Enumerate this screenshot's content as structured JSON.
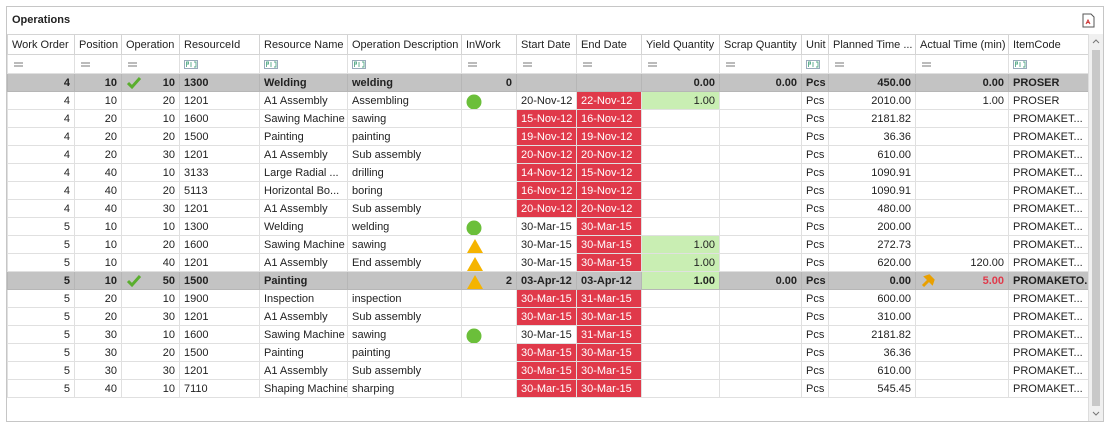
{
  "title": "Operations",
  "columns": [
    {
      "label": "Work Order",
      "align": "right",
      "filter": "number"
    },
    {
      "label": "Position",
      "align": "right",
      "filter": "number"
    },
    {
      "label": "Operation",
      "align": "right",
      "filter": "number"
    },
    {
      "label": "ResourceId",
      "align": "left",
      "filter": "text"
    },
    {
      "label": "Resource Name",
      "align": "left",
      "filter": "text"
    },
    {
      "label": "Operation Description",
      "align": "left",
      "filter": "text"
    },
    {
      "label": "InWork",
      "align": "right",
      "filter": "number"
    },
    {
      "label": "Start Date",
      "align": "left",
      "filter": "number"
    },
    {
      "label": "End Date",
      "align": "left",
      "filter": "number"
    },
    {
      "label": "Yield Quantity",
      "align": "right",
      "filter": "number"
    },
    {
      "label": "Scrap Quantity",
      "align": "right",
      "filter": "number"
    },
    {
      "label": "Unit",
      "align": "left",
      "filter": "text"
    },
    {
      "label": "Planned Time ...",
      "align": "right",
      "filter": "number"
    },
    {
      "label": "Actual Time (min)",
      "align": "right",
      "filter": "number"
    },
    {
      "label": "ItemCode",
      "align": "left",
      "filter": "text"
    }
  ],
  "rows": [
    {
      "cells": [
        "4",
        "10",
        "10",
        "1300",
        "Welding",
        "welding",
        "0",
        null,
        null,
        "0.00",
        "0.00",
        "Pcs",
        "450.00",
        "0.00",
        "PROSER"
      ],
      "group": true,
      "check": true
    },
    {
      "cells": [
        "4",
        "10",
        "20",
        "1201",
        "A1 Assembly",
        "Assembling",
        null,
        "20-Nov-12",
        "22-Nov-12",
        "1.00",
        null,
        "Pcs",
        "2010.00",
        "1.00",
        "PROSER"
      ],
      "status": "circle",
      "red": [
        8
      ],
      "green": [
        9
      ]
    },
    {
      "cells": [
        "4",
        "20",
        "10",
        "1600",
        "Sawing Machine",
        "sawing",
        null,
        "15-Nov-12",
        "16-Nov-12",
        null,
        null,
        "Pcs",
        "2181.82",
        null,
        "PROMAKET..."
      ],
      "red": [
        7,
        8
      ]
    },
    {
      "cells": [
        "4",
        "20",
        "20",
        "1500",
        "Painting",
        "painting",
        null,
        "19-Nov-12",
        "19-Nov-12",
        null,
        null,
        "Pcs",
        "36.36",
        null,
        "PROMAKET..."
      ],
      "red": [
        7,
        8
      ]
    },
    {
      "cells": [
        "4",
        "20",
        "30",
        "1201",
        "A1 Assembly",
        "Sub assembly",
        null,
        "20-Nov-12",
        "20-Nov-12",
        null,
        null,
        "Pcs",
        "610.00",
        null,
        "PROMAKET..."
      ],
      "red": [
        7,
        8
      ]
    },
    {
      "cells": [
        "4",
        "40",
        "10",
        "3133",
        "Large Radial ...",
        "drilling",
        null,
        "14-Nov-12",
        "15-Nov-12",
        null,
        null,
        "Pcs",
        "1090.91",
        null,
        "PROMAKET..."
      ],
      "red": [
        7,
        8
      ]
    },
    {
      "cells": [
        "4",
        "40",
        "20",
        "5113",
        "Horizontal Bo...",
        "boring",
        null,
        "16-Nov-12",
        "19-Nov-12",
        null,
        null,
        "Pcs",
        "1090.91",
        null,
        "PROMAKET..."
      ],
      "red": [
        7,
        8
      ]
    },
    {
      "cells": [
        "4",
        "40",
        "30",
        "1201",
        "A1 Assembly",
        "Sub assembly",
        null,
        "20-Nov-12",
        "20-Nov-12",
        null,
        null,
        "Pcs",
        "480.00",
        null,
        "PROMAKET..."
      ],
      "red": [
        7,
        8
      ]
    },
    {
      "cells": [
        "5",
        "10",
        "10",
        "1300",
        "Welding",
        "welding",
        null,
        "30-Mar-15",
        "30-Mar-15",
        null,
        null,
        "Pcs",
        "200.00",
        null,
        "PROMAKET..."
      ],
      "status": "circle",
      "red": [
        8
      ]
    },
    {
      "cells": [
        "5",
        "10",
        "20",
        "1600",
        "Sawing Machine",
        "sawing",
        null,
        "30-Mar-15",
        "30-Mar-15",
        "1.00",
        null,
        "Pcs",
        "272.73",
        null,
        "PROMAKET..."
      ],
      "status": "triangle",
      "red": [
        8
      ],
      "green": [
        9
      ]
    },
    {
      "cells": [
        "5",
        "10",
        "40",
        "1201",
        "A1 Assembly",
        "End assembly",
        null,
        "30-Mar-15",
        "30-Mar-15",
        "1.00",
        null,
        "Pcs",
        "620.00",
        "120.00",
        "PROMAKET..."
      ],
      "status": "triangle",
      "red": [
        8
      ],
      "green": [
        9
      ]
    },
    {
      "cells": [
        "5",
        "10",
        "50",
        "1500",
        "Painting",
        null,
        "2",
        "03-Apr-12",
        "03-Apr-12",
        "1.00",
        "0.00",
        "Pcs",
        "0.00",
        "5.00",
        "PROMAKETO..."
      ],
      "group": true,
      "check": true,
      "status": "triangle",
      "green": [
        9
      ],
      "alert": true
    },
    {
      "cells": [
        "5",
        "20",
        "10",
        "1900",
        "Inspection",
        "inspection",
        null,
        "30-Mar-15",
        "31-Mar-15",
        null,
        null,
        "Pcs",
        "600.00",
        null,
        "PROMAKET..."
      ],
      "red": [
        7,
        8
      ]
    },
    {
      "cells": [
        "5",
        "20",
        "30",
        "1201",
        "A1 Assembly",
        "Sub assembly",
        null,
        "30-Mar-15",
        "30-Mar-15",
        null,
        null,
        "Pcs",
        "310.00",
        null,
        "PROMAKET..."
      ],
      "red": [
        7,
        8
      ]
    },
    {
      "cells": [
        "5",
        "30",
        "10",
        "1600",
        "Sawing Machine",
        "sawing",
        null,
        "30-Mar-15",
        "31-Mar-15",
        null,
        null,
        "Pcs",
        "2181.82",
        null,
        "PROMAKET..."
      ],
      "status": "circle",
      "red": [
        8
      ]
    },
    {
      "cells": [
        "5",
        "30",
        "20",
        "1500",
        "Painting",
        "painting",
        null,
        "30-Mar-15",
        "30-Mar-15",
        null,
        null,
        "Pcs",
        "36.36",
        null,
        "PROMAKET..."
      ],
      "red": [
        7,
        8
      ]
    },
    {
      "cells": [
        "5",
        "30",
        "30",
        "1201",
        "A1 Assembly",
        "Sub assembly",
        null,
        "30-Mar-15",
        "30-Mar-15",
        null,
        null,
        "Pcs",
        "610.00",
        null,
        "PROMAKET..."
      ],
      "red": [
        7,
        8
      ]
    },
    {
      "cells": [
        "5",
        "40",
        "10",
        "7110",
        "Shaping Machine",
        "sharping",
        null,
        "30-Mar-15",
        "30-Mar-15",
        null,
        null,
        "Pcs",
        "545.45",
        null,
        "PROMAKET..."
      ],
      "red": [
        7,
        8
      ]
    }
  ]
}
